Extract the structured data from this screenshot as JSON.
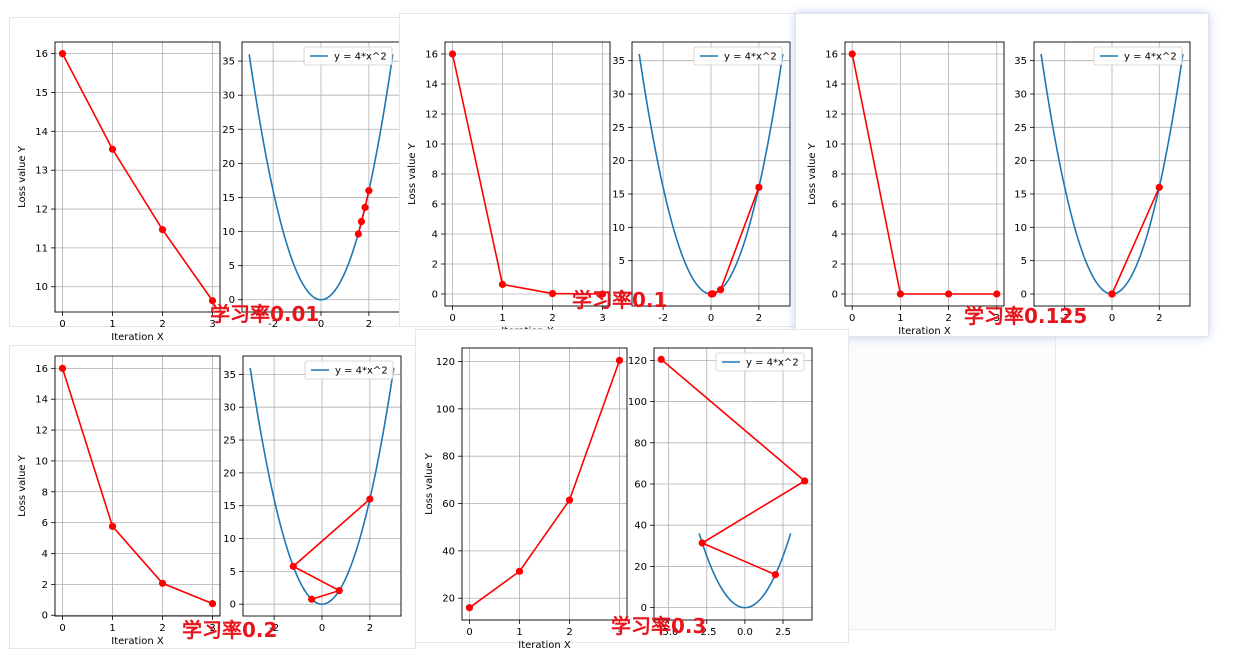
{
  "labels": {
    "lr1": "学习率0.01",
    "lr2": "学习率0.1",
    "lr3": "学习率0.125",
    "lr4": "学习率0.2",
    "lr5": "学习率0.3"
  },
  "colors": {
    "path": "#ff0000",
    "curve": "#1f77b4",
    "grid": "#b0b0b0",
    "label": "#e8141c"
  },
  "chart_data": [
    {
      "type": "line",
      "panel": "lr-0.01",
      "xlabel": "Iteration X",
      "ylabel": "Loss value Y",
      "x": [
        0,
        1,
        2,
        3
      ],
      "y": [
        16,
        13.54,
        11.47,
        9.64
      ],
      "xlim": [
        -0.15,
        3.15
      ],
      "ylim": [
        9.35,
        16.3
      ],
      "xticks": [
        0,
        1,
        2,
        3
      ],
      "yticks": [
        10,
        11,
        12,
        13,
        14,
        15,
        16
      ],
      "grid": true
    },
    {
      "type": "line",
      "panel": "lr-0.01",
      "legend": "y = 4*x^2",
      "legend_position": "top-right",
      "curve_range": [
        -3,
        3
      ],
      "points_x": [
        2,
        1.84,
        1.69,
        1.56
      ],
      "points_y": [
        16,
        13.54,
        11.47,
        9.64
      ],
      "xlim": [
        -3.3,
        3.3
      ],
      "ylim": [
        -1.8,
        37.8
      ],
      "xticks": [
        -2,
        0,
        2
      ],
      "yticks": [
        0,
        5,
        10,
        15,
        20,
        25,
        30,
        35
      ],
      "grid": true
    },
    {
      "type": "line",
      "panel": "lr-0.1",
      "xlabel": "Iteration X",
      "ylabel": "Loss value Y",
      "x": [
        0,
        1,
        2,
        3
      ],
      "y": [
        16,
        0.64,
        0.03,
        0.0
      ],
      "xlim": [
        -0.15,
        3.15
      ],
      "ylim": [
        -0.8,
        16.8
      ],
      "xticks": [
        0,
        1,
        2,
        3
      ],
      "yticks": [
        0,
        2,
        4,
        6,
        8,
        10,
        12,
        14,
        16
      ],
      "grid": true
    },
    {
      "type": "line",
      "panel": "lr-0.1",
      "legend": "y = 4*x^2",
      "legend_position": "top-right",
      "curve_range": [
        -3,
        3
      ],
      "points_x": [
        2,
        0.4,
        0.08,
        0.016
      ],
      "points_y": [
        16,
        0.64,
        0.03,
        0.0
      ],
      "xlim": [
        -3.3,
        3.3
      ],
      "ylim": [
        -1.8,
        37.8
      ],
      "xticks": [
        -2,
        0,
        2
      ],
      "yticks": [
        0,
        5,
        10,
        15,
        20,
        25,
        30,
        35
      ],
      "grid": true
    },
    {
      "type": "line",
      "panel": "lr-0.125",
      "xlabel": "Iteration X",
      "ylabel": "Loss value Y",
      "x": [
        0,
        1,
        2,
        3
      ],
      "y": [
        16,
        0,
        0,
        0
      ],
      "xlim": [
        -0.15,
        3.15
      ],
      "ylim": [
        -0.8,
        16.8
      ],
      "xticks": [
        0,
        1,
        2,
        3
      ],
      "yticks": [
        0,
        2,
        4,
        6,
        8,
        10,
        12,
        14,
        16
      ],
      "grid": true
    },
    {
      "type": "line",
      "panel": "lr-0.125",
      "legend": "y = 4*x^2",
      "legend_position": "top-right",
      "curve_range": [
        -3,
        3
      ],
      "points_x": [
        2,
        0,
        0,
        0
      ],
      "points_y": [
        16,
        0,
        0,
        0
      ],
      "xlim": [
        -3.3,
        3.3
      ],
      "ylim": [
        -1.8,
        37.8
      ],
      "xticks": [
        -2,
        0,
        2
      ],
      "yticks": [
        0,
        5,
        10,
        15,
        20,
        25,
        30,
        35
      ],
      "grid": true
    },
    {
      "type": "line",
      "panel": "lr-0.2",
      "xlabel": "Iteration X",
      "ylabel": "Loss value Y",
      "x": [
        0,
        1,
        2,
        3
      ],
      "y": [
        16,
        5.76,
        2.07,
        0.75
      ],
      "xlim": [
        -0.15,
        3.15
      ],
      "ylim": [
        -0.05,
        16.8
      ],
      "xticks": [
        0,
        1,
        2,
        3
      ],
      "yticks": [
        0,
        2,
        4,
        6,
        8,
        10,
        12,
        14,
        16
      ],
      "grid": true
    },
    {
      "type": "line",
      "panel": "lr-0.2",
      "legend": "y = 4*x^2",
      "legend_position": "top-right",
      "curve_range": [
        -3,
        3
      ],
      "points_x": [
        2,
        -1.2,
        0.72,
        -0.432
      ],
      "points_y": [
        16,
        5.76,
        2.07,
        0.75
      ],
      "xlim": [
        -3.3,
        3.3
      ],
      "ylim": [
        -1.8,
        37.8
      ],
      "xticks": [
        -2,
        0,
        2
      ],
      "yticks": [
        0,
        5,
        10,
        15,
        20,
        25,
        30,
        35
      ],
      "grid": true
    },
    {
      "type": "line",
      "panel": "lr-0.3",
      "xlabel": "Iteration X",
      "ylabel": "Loss value Y",
      "x": [
        0,
        1,
        2,
        3
      ],
      "y": [
        16,
        31.36,
        61.47,
        120.47
      ],
      "xlim": [
        -0.15,
        3.15
      ],
      "ylim": [
        10.8,
        125.7
      ],
      "xticks": [
        0,
        1,
        2,
        3
      ],
      "yticks": [
        20,
        40,
        60,
        80,
        100,
        120
      ],
      "grid": true
    },
    {
      "type": "line",
      "panel": "lr-0.3",
      "legend": "y = 4*x^2",
      "legend_position": "top-right",
      "curve_range": [
        -3,
        3
      ],
      "points_x": [
        2,
        -2.8,
        3.92,
        -5.488
      ],
      "points_y": [
        16,
        31.36,
        61.47,
        120.47
      ],
      "xlim": [
        -5.96,
        4.4
      ],
      "ylim": [
        -6,
        126
      ],
      "xticks": [
        -5,
        -2.5,
        0,
        2.5
      ],
      "xticklabels": [
        "-5.0",
        "-2.5",
        "0.0",
        "2.5"
      ],
      "yticks": [
        0,
        20,
        40,
        60,
        80,
        100,
        120
      ],
      "grid": true
    }
  ]
}
